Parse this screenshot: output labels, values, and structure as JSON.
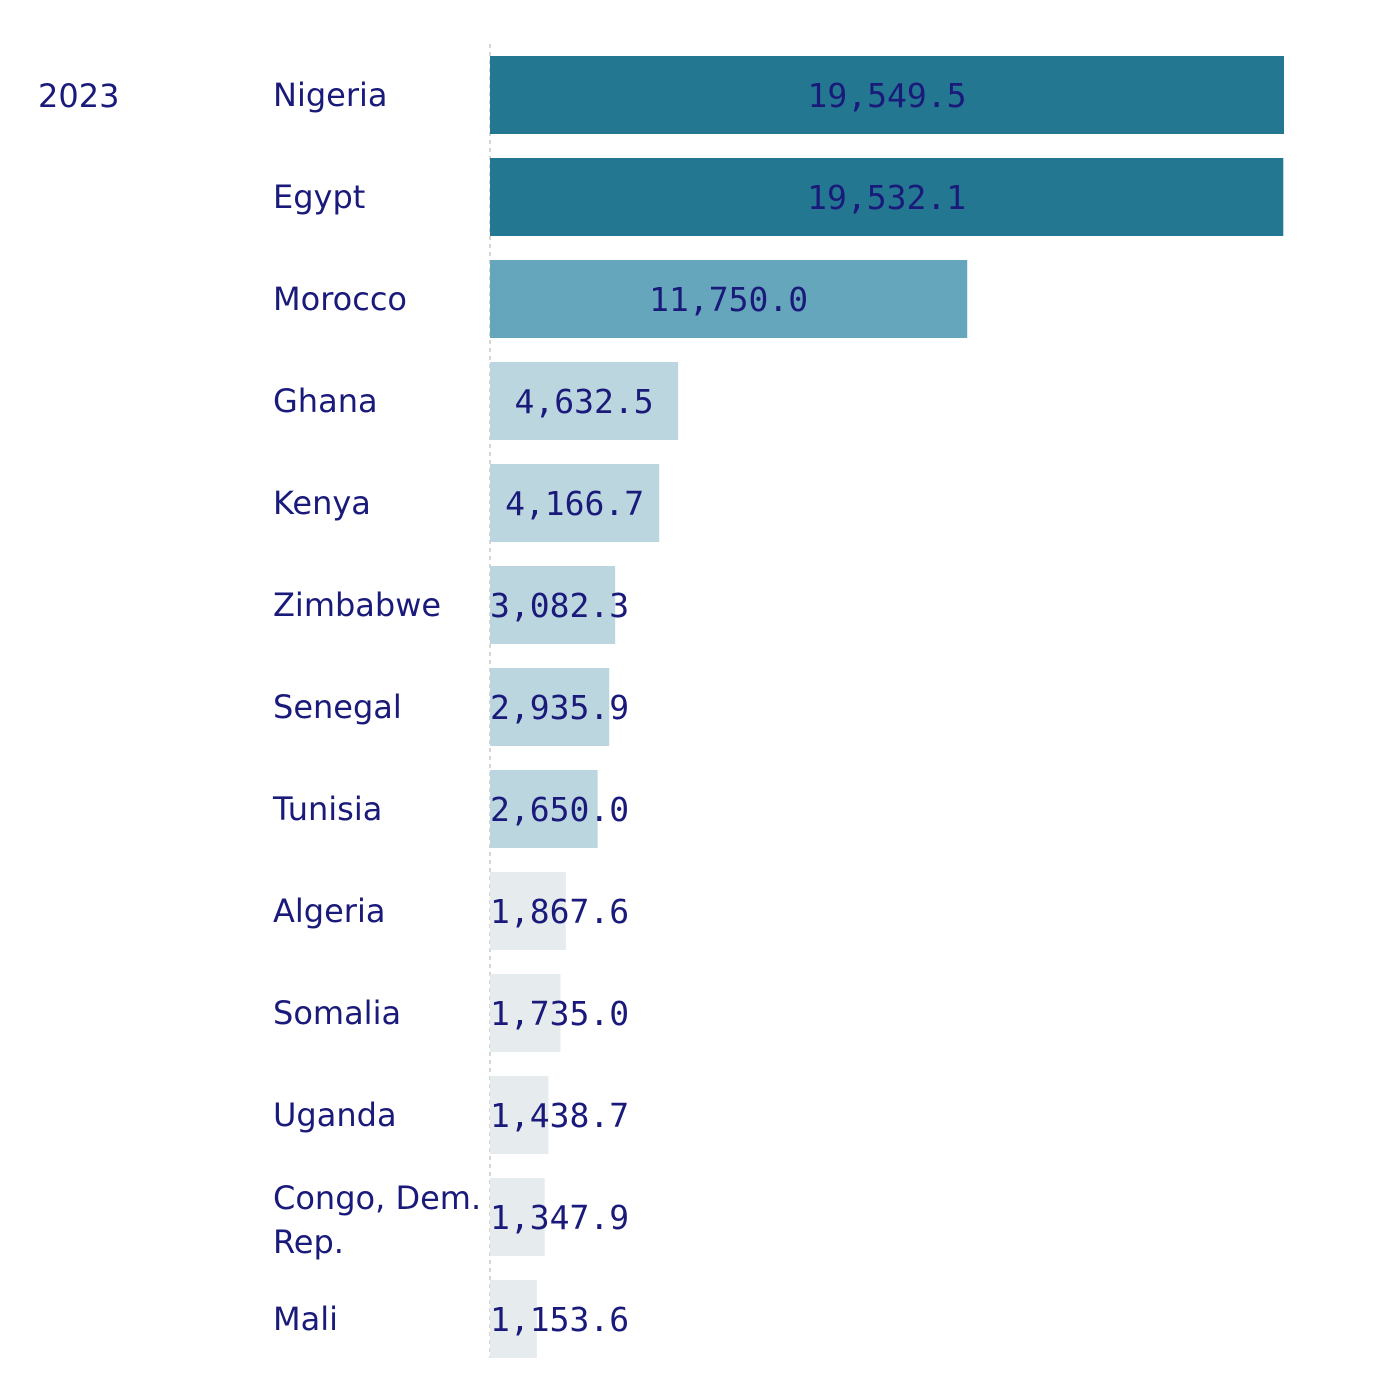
{
  "chart_data": {
    "type": "bar",
    "orientation": "horizontal",
    "group_label": "2023",
    "categories": [
      "Nigeria",
      "Egypt",
      "Morocco",
      "Ghana",
      "Kenya",
      "Zimbabwe",
      "Senegal",
      "Tunisia",
      "Algeria",
      "Somalia",
      "Uganda",
      "Congo, Dem. Rep.",
      "Mali"
    ],
    "values": [
      19549.5,
      19532.1,
      11750.0,
      4632.5,
      4166.7,
      3082.3,
      2935.9,
      2650.0,
      1867.6,
      1735.0,
      1438.7,
      1347.9,
      1153.6
    ],
    "value_labels": [
      "19,549.5",
      "19,532.1",
      "11,750.0",
      "4,632.5",
      "4,166.7",
      "3,082.3",
      "2,935.9",
      "2,650.0",
      "1,867.6",
      "1,735.0",
      "1,438.7",
      "1,347.9",
      "1,153.6"
    ],
    "title": "",
    "xlabel": "",
    "ylabel": "",
    "xlim": [
      0,
      19549.5
    ],
    "grid": false,
    "legend": "none",
    "color_scale": [
      "#e6ecee",
      "#bcd6df",
      "#66a6bd",
      "#237791"
    ]
  }
}
